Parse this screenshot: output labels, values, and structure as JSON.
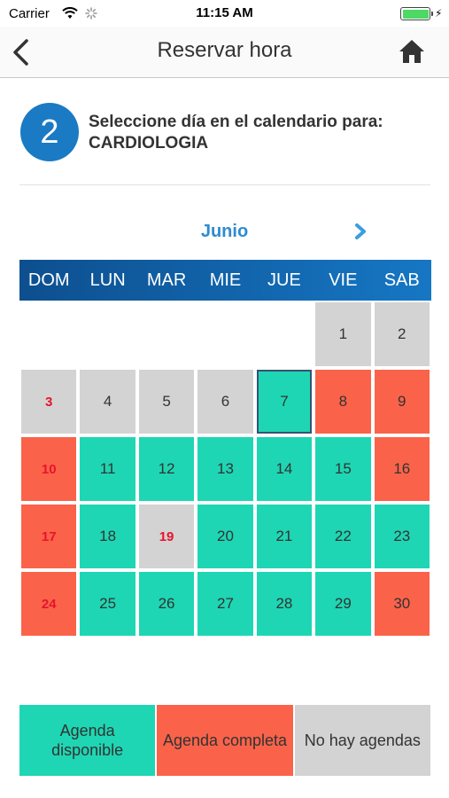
{
  "status_bar": {
    "carrier": "Carrier",
    "time": "11:15 AM",
    "icons": [
      "wifi-icon",
      "activity-icon",
      "battery-icon",
      "charging-icon"
    ],
    "battery_level": 1.0
  },
  "nav": {
    "title": "Reservar hora",
    "back_icon": "chevron-left-icon",
    "home_icon": "home-icon"
  },
  "step": {
    "number": "2",
    "line1": "Seleccione día en el calendario para:",
    "line2": "CARDIOLOGIA"
  },
  "calendar": {
    "month": "Junio",
    "next_icon": "chevron-right-icon",
    "weekdays": [
      "DOM",
      "LUN",
      "MAR",
      "MIE",
      "JUE",
      "VIE",
      "SAB"
    ],
    "leading_empty": 5,
    "selected_day": "7",
    "days": [
      {
        "label": "1",
        "status": "none"
      },
      {
        "label": "2",
        "status": "none"
      },
      {
        "label": "3",
        "status": "none",
        "holiday": true
      },
      {
        "label": "4",
        "status": "none"
      },
      {
        "label": "5",
        "status": "none"
      },
      {
        "label": "6",
        "status": "none"
      },
      {
        "label": "7",
        "status": "available"
      },
      {
        "label": "8",
        "status": "full"
      },
      {
        "label": "9",
        "status": "full"
      },
      {
        "label": "10",
        "status": "full",
        "holiday": true
      },
      {
        "label": "11",
        "status": "available"
      },
      {
        "label": "12",
        "status": "available"
      },
      {
        "label": "13",
        "status": "available"
      },
      {
        "label": "14",
        "status": "available"
      },
      {
        "label": "15",
        "status": "available"
      },
      {
        "label": "16",
        "status": "full"
      },
      {
        "label": "17",
        "status": "full",
        "holiday": true
      },
      {
        "label": "18",
        "status": "available"
      },
      {
        "label": "19",
        "status": "none",
        "holiday": true
      },
      {
        "label": "20",
        "status": "available"
      },
      {
        "label": "21",
        "status": "available"
      },
      {
        "label": "22",
        "status": "available"
      },
      {
        "label": "23",
        "status": "available"
      },
      {
        "label": "24",
        "status": "full",
        "holiday": true
      },
      {
        "label": "25",
        "status": "available"
      },
      {
        "label": "26",
        "status": "available"
      },
      {
        "label": "27",
        "status": "available"
      },
      {
        "label": "28",
        "status": "available"
      },
      {
        "label": "29",
        "status": "available"
      },
      {
        "label": "30",
        "status": "full"
      }
    ]
  },
  "legend": {
    "available_line1": "Agenda",
    "available_line2": "disponible",
    "full": "Agenda completa",
    "none": "No hay agendas"
  },
  "colors": {
    "available": "#1ed6b4",
    "full": "#fa634a",
    "none": "#d3d3d3",
    "header_start": "#0d4f8f",
    "header_end": "#1677c4",
    "accent": "#2e8bd0",
    "step_circle": "#1a7ac4",
    "holiday_text": "#e8132a"
  }
}
